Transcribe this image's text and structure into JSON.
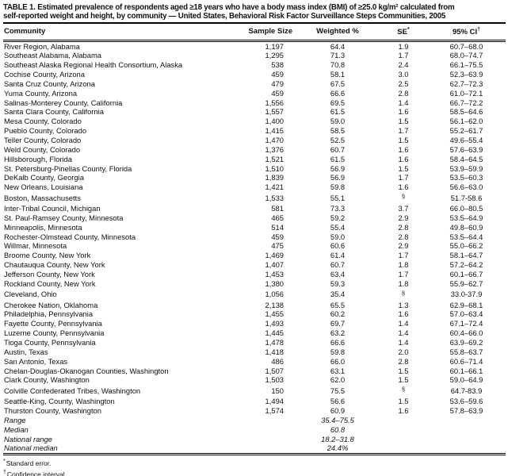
{
  "chart_data": {
    "type": "table",
    "title_line1": "TABLE 1. Estimated prevalence of respondents aged ≥18 years who have a body mass index (BMI) of ≥25.0 kg/m² calculated from",
    "title_line2": "self-reported weight and height, by community — United States, Behavioral Risk Factor Surveillance Steps Communities, 2005",
    "columns": [
      {
        "label": "Community"
      },
      {
        "label": "Sample Size"
      },
      {
        "label": "Weighted %"
      },
      {
        "label": "SE",
        "sup": "*"
      },
      {
        "label": "95% CI",
        "sup": "†"
      }
    ],
    "rows": [
      [
        "River Region, Alabama",
        "1,197",
        "64.4",
        "1.9",
        "60.7–68.0"
      ],
      [
        "Southeast Alabama, Alabama",
        "1,295",
        "71.3",
        "1.7",
        "68.0–74.7"
      ],
      [
        "Southeast Alaska Regional Health Consortium, Alaska",
        "538",
        "70.8",
        "2.4",
        "66.1–75.5"
      ],
      [
        "Cochise County, Arizona",
        "459",
        "58.1",
        "3.0",
        "52.3–63.9"
      ],
      [
        "Santa Cruz County, Arizona",
        "479",
        "67.5",
        "2.5",
        "62.7–72.3"
      ],
      [
        "Yuma County, Arizona",
        "459",
        "66.6",
        "2.8",
        "61.0–72.1"
      ],
      [
        "Salinas-Monterey County, California",
        "1,556",
        "69.5",
        "1.4",
        "66.7–72.2"
      ],
      [
        "Santa Clara County, California",
        "1,557",
        "61.5",
        "1.6",
        "58.5–64.6"
      ],
      [
        "Mesa County, Colorado",
        "1,400",
        "59.0",
        "1.5",
        "56.1–62.0"
      ],
      [
        "Pueblo County, Colorado",
        "1,415",
        "58.5",
        "1.7",
        "55.2–61.7"
      ],
      [
        "Teller County, Colorado",
        "1,470",
        "52.5",
        "1.5",
        "49.6–55.4"
      ],
      [
        "Weld County, Colorado",
        "1,376",
        "60.7",
        "1.6",
        "57.6–63.9"
      ],
      [
        "Hillsborough, Florida",
        "1,521",
        "61.5",
        "1.6",
        "58.4–64.5"
      ],
      [
        "St. Petersburg-Pinellas County, Florida",
        "1,510",
        "56.9",
        "1.5",
        "53.9–59.9"
      ],
      [
        "DeKalb County, Georgia",
        "1,839",
        "56.9",
        "1.7",
        "53.5–60.3"
      ],
      [
        "New Orleans, Louisiana",
        "1,421",
        "59.8",
        "1.6",
        "56.6–63.0"
      ],
      [
        "Boston, Massachusetts",
        "1,533",
        "55.1",
        "§",
        "51.7-58.6"
      ],
      [
        "Inter-Tribal Council, Michigan",
        "581",
        "73.3",
        "3.7",
        "66.0–80.5"
      ],
      [
        "St. Paul-Ramsey County, Minnesota",
        "465",
        "59.2",
        "2.9",
        "53.5–64.9"
      ],
      [
        "Minneapolis, Minnesota",
        "514",
        "55.4",
        "2.8",
        "49.8–60.9"
      ],
      [
        "Rochester-Olmstead County, Minnesota",
        "459",
        "59.0",
        "2.8",
        "53.5–64.4"
      ],
      [
        "Willmar, Minnesota",
        "475",
        "60.6",
        "2.9",
        "55.0–66.2"
      ],
      [
        "Broome County, New York",
        "1,469",
        "61.4",
        "1.7",
        "58.1–64.7"
      ],
      [
        "Chautauqua County, New York",
        "1,407",
        "60.7",
        "1.8",
        "57.2–64.2"
      ],
      [
        "Jefferson County, New York",
        "1,453",
        "63.4",
        "1.7",
        "60.1–66.7"
      ],
      [
        "Rockland County, New York",
        "1,380",
        "59.3",
        "1.8",
        "55.9–62.7"
      ],
      [
        "Cleveland, Ohio",
        "1,056",
        "35.4",
        "§",
        "33.0-37.9"
      ],
      [
        "Cherokee Nation, Oklahoma",
        "2,138",
        "65.5",
        "1.3",
        "62.9–68.1"
      ],
      [
        "Philadelphia, Pennsylvania",
        "1,455",
        "60.2",
        "1.6",
        "57.0–63.4"
      ],
      [
        "Fayette County, Pennsylvania",
        "1,493",
        "69.7",
        "1.4",
        "67.1–72.4"
      ],
      [
        "Luzerne County, Pennsylvania",
        "1,445",
        "63.2",
        "1.4",
        "60.4–66.0"
      ],
      [
        "Tioga County, Pennsylvania",
        "1,478",
        "66.6",
        "1.4",
        "63.9–69.2"
      ],
      [
        "Austin, Texas",
        "1,418",
        "59.8",
        "2.0",
        "55.8–63.7"
      ],
      [
        "San Antonio, Texas",
        "486",
        "66.0",
        "2.8",
        "60.6–71.4"
      ],
      [
        "Chelan-Douglas-Okanogan Counties, Washington",
        "1,507",
        "63.1",
        "1.5",
        "60.1–66.1"
      ],
      [
        "Clark County, Washington",
        "1,503",
        "62.0",
        "1.5",
        "59.0–64.9"
      ],
      [
        "Colville Confederated Tribes, Washington",
        "150",
        "75.5",
        "§",
        "64.7-83.9"
      ],
      [
        "Seattle-King, County, Washington",
        "1,494",
        "56.6",
        "1.5",
        "53.6–59.6"
      ],
      [
        "Thurston County, Washington",
        "1,574",
        "60.9",
        "1.6",
        "57.8–63.9"
      ]
    ],
    "summary_rows": [
      {
        "label": "Range",
        "value": "35.4–75.5"
      },
      {
        "label": "Median",
        "value": "60.8"
      },
      {
        "label": "National range",
        "value": "18.2–31.8"
      },
      {
        "label": "National median",
        "value": "24.4%"
      }
    ],
    "footnotes": [
      {
        "marker": "*",
        "text": "Standard error."
      },
      {
        "marker": "†",
        "text": "Confidence interval."
      },
      {
        "marker": "§",
        "text": "Data analysis conducted by the community; SE not reported."
      }
    ]
  }
}
